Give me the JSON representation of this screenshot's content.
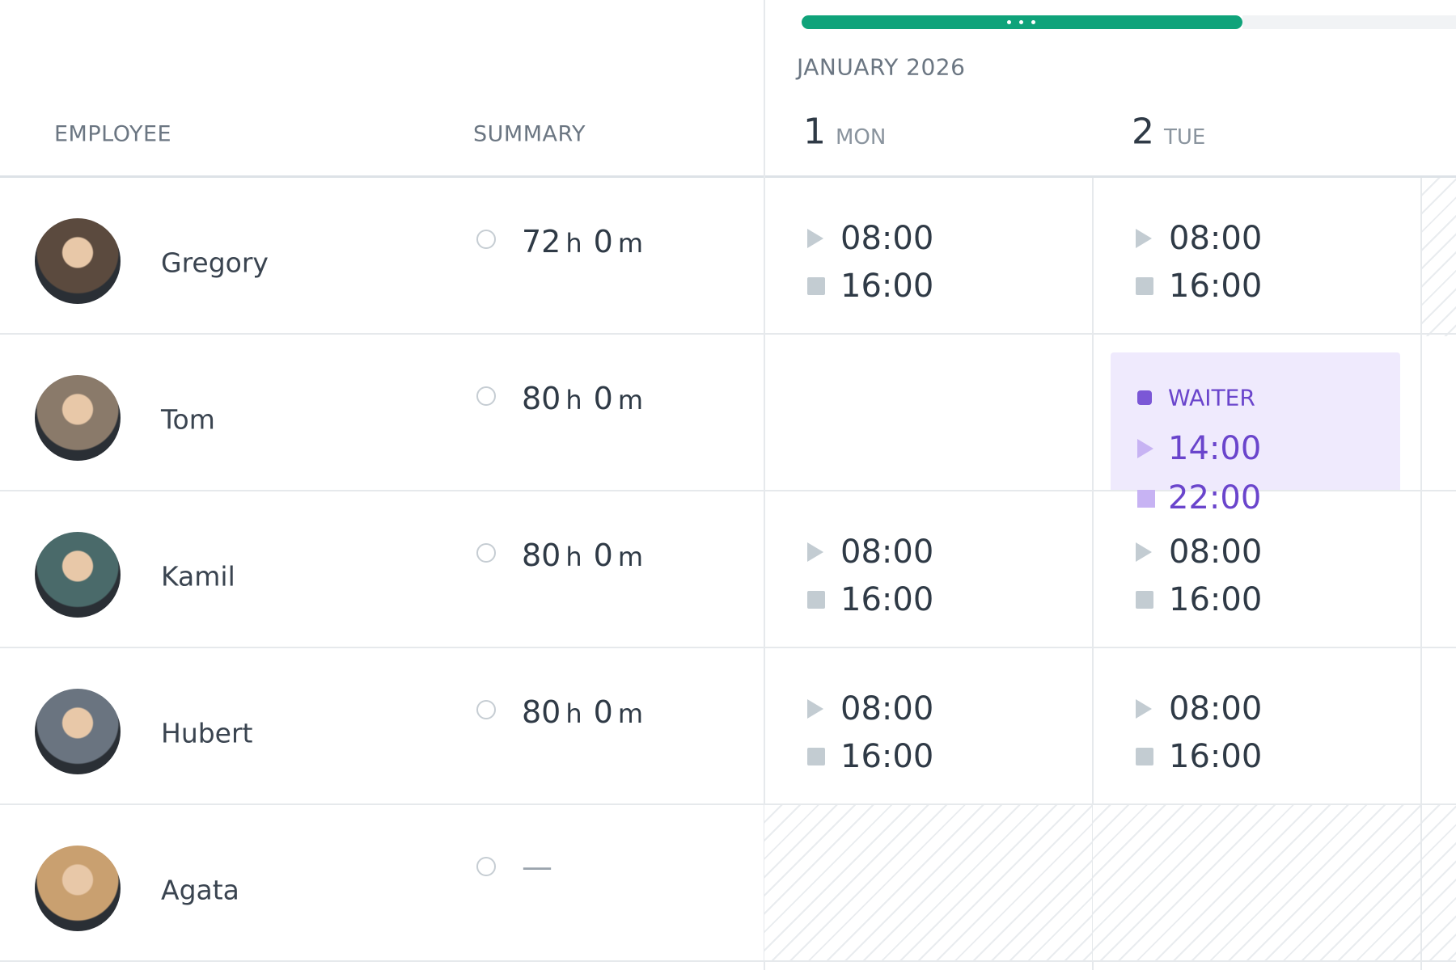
{
  "header": {
    "month": "JANUARY 2026",
    "columns": {
      "employee": "EMPLOYEE",
      "summary": "SUMMARY"
    },
    "days": [
      {
        "number": "1",
        "weekday": "MON"
      },
      {
        "number": "2",
        "weekday": "TUE"
      }
    ]
  },
  "units": {
    "hours": "h",
    "minutes": "m"
  },
  "employees": [
    {
      "name": "Gregory",
      "hours": "72",
      "minutes": "0",
      "shifts": [
        {
          "start": "08:00",
          "end": "16:00"
        },
        {
          "start": "08:00",
          "end": "16:00"
        }
      ]
    },
    {
      "name": "Tom",
      "hours": "80",
      "minutes": "0",
      "shifts": [
        null,
        {
          "role": "WAITER",
          "start": "14:00",
          "end": "22:00"
        }
      ]
    },
    {
      "name": "Kamil",
      "hours": "80",
      "minutes": "0",
      "shifts": [
        {
          "start": "08:00",
          "end": "16:00"
        },
        {
          "start": "08:00",
          "end": "16:00"
        }
      ]
    },
    {
      "name": "Hubert",
      "hours": "80",
      "minutes": "0",
      "shifts": [
        {
          "start": "08:00",
          "end": "16:00"
        },
        {
          "start": "08:00",
          "end": "16:00"
        }
      ]
    },
    {
      "name": "Agata",
      "empty_summary": "—",
      "shifts": [
        "unavailable",
        "unavailable"
      ]
    }
  ]
}
